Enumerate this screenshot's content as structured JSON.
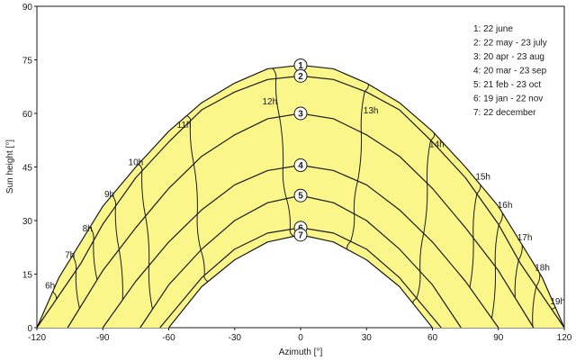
{
  "chart_data": {
    "type": "line",
    "title": "",
    "xlabel": "Azimuth [°]",
    "ylabel": "Sun height [°]",
    "xlim": [
      -120,
      120
    ],
    "ylim": [
      0,
      90
    ],
    "x_ticks": [
      "-120",
      "-90",
      "-60",
      "-30",
      "0",
      "30",
      "60",
      "90",
      "120"
    ],
    "y_ticks": [
      "0",
      "15",
      "30",
      "45",
      "60",
      "75",
      "90"
    ],
    "fill_color": "#fbf68a",
    "line_color": "#1a1a1a",
    "legend_position": "top-right",
    "legend": [
      "1: 22 june",
      "2: 22 may - 23 july",
      "3: 20 apr - 23 aug",
      "4: 20 mar - 23 sep",
      "5: 21 feb - 23 oct",
      "6: 19 jan - 22 nov",
      "7: 22 december"
    ],
    "series": [
      {
        "label": "1",
        "x": [
          -120,
          -110,
          -90,
          -75,
          -60,
          -45,
          -30,
          -15,
          0,
          15,
          30,
          45,
          60,
          75,
          90,
          110,
          120
        ],
        "y": [
          0,
          14,
          34,
          45,
          55,
          63,
          68.5,
          72.5,
          73.5,
          72.5,
          68.5,
          63,
          55,
          45,
          34,
          14,
          0
        ]
      },
      {
        "label": "2",
        "x": [
          -120,
          -100,
          -90,
          -75,
          -60,
          -45,
          -30,
          -15,
          0,
          15,
          30,
          45,
          60,
          75,
          90,
          100,
          120
        ],
        "y": [
          0,
          18,
          29,
          42,
          52,
          61,
          66,
          69.5,
          70.5,
          69.5,
          66,
          61,
          52,
          42,
          29,
          18,
          0
        ]
      },
      {
        "label": "3",
        "x": [
          -106,
          -90,
          -75,
          -60,
          -45,
          -30,
          -15,
          0,
          15,
          30,
          45,
          60,
          75,
          90,
          106
        ],
        "y": [
          0,
          16,
          28,
          39,
          48,
          54,
          58.5,
          60,
          58.5,
          54,
          48,
          39,
          28,
          16,
          0
        ]
      },
      {
        "label": "4",
        "x": [
          -90,
          -75,
          -60,
          -45,
          -30,
          -15,
          0,
          15,
          30,
          45,
          60,
          75,
          90
        ],
        "y": [
          0,
          13,
          24,
          33,
          40,
          44,
          45.5,
          44,
          40,
          33,
          24,
          13,
          0
        ]
      },
      {
        "label": "5",
        "x": [
          -73,
          -60,
          -45,
          -30,
          -15,
          0,
          15,
          30,
          45,
          60,
          73
        ],
        "y": [
          0,
          12,
          22,
          30,
          35,
          37,
          35,
          30,
          22,
          12,
          0
        ]
      },
      {
        "label": "6",
        "x": [
          -64,
          -45,
          -30,
          -15,
          0,
          15,
          30,
          45,
          64
        ],
        "y": [
          0,
          14,
          22,
          26.5,
          28,
          26.5,
          22,
          14,
          0
        ]
      },
      {
        "label": "7",
        "x": [
          -60,
          -45,
          -30,
          -15,
          0,
          15,
          30,
          45,
          60
        ],
        "y": [
          0,
          11.5,
          19,
          24,
          26,
          24,
          19,
          11.5,
          0
        ]
      }
    ],
    "hour_labels": [
      {
        "label": "6h",
        "x": -114,
        "y": 11
      },
      {
        "label": "7h",
        "x": -105,
        "y": 19.5
      },
      {
        "label": "8h",
        "x": -97,
        "y": 27
      },
      {
        "label": "9h",
        "x": -87,
        "y": 36.5
      },
      {
        "label": "10h",
        "x": -75,
        "y": 45.5
      },
      {
        "label": "11h",
        "x": -53,
        "y": 56
      },
      {
        "label": "12h",
        "x": -14,
        "y": 62.5
      },
      {
        "label": "13h",
        "x": 32,
        "y": 60
      },
      {
        "label": "14h",
        "x": 62,
        "y": 50.5
      },
      {
        "label": "15h",
        "x": 83,
        "y": 41.5
      },
      {
        "label": "16h",
        "x": 93,
        "y": 33.5
      },
      {
        "label": "17h",
        "x": 102,
        "y": 24.5
      },
      {
        "label": "18h",
        "x": 110,
        "y": 16
      },
      {
        "label": "19h",
        "x": 117,
        "y": 6.5
      }
    ]
  }
}
